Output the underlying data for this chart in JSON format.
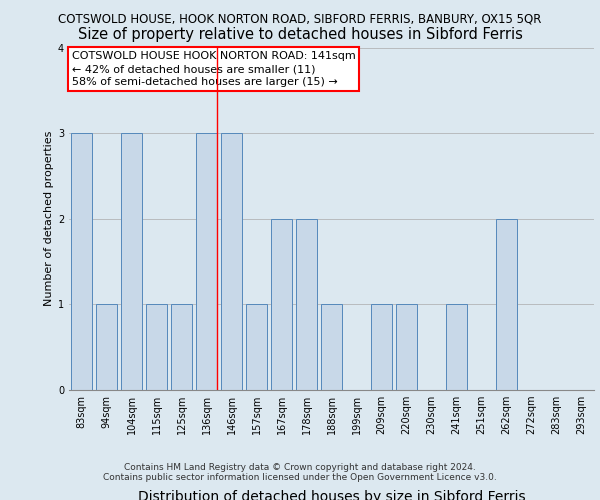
{
  "title_line1": "COTSWOLD HOUSE, HOOK NORTON ROAD, SIBFORD FERRIS, BANBURY, OX15 5QR",
  "title_line2": "Size of property relative to detached houses in Sibford Ferris",
  "xlabel": "Distribution of detached houses by size in Sibford Ferris",
  "ylabel": "Number of detached properties",
  "footer1": "Contains HM Land Registry data © Crown copyright and database right 2024.",
  "footer2": "Contains public sector information licensed under the Open Government Licence v3.0.",
  "categories": [
    "83sqm",
    "94sqm",
    "104sqm",
    "115sqm",
    "125sqm",
    "136sqm",
    "146sqm",
    "157sqm",
    "167sqm",
    "178sqm",
    "188sqm",
    "199sqm",
    "209sqm",
    "220sqm",
    "230sqm",
    "241sqm",
    "251sqm",
    "262sqm",
    "272sqm",
    "283sqm",
    "293sqm"
  ],
  "values": [
    3,
    1,
    3,
    1,
    1,
    3,
    3,
    1,
    2,
    2,
    1,
    0,
    1,
    1,
    0,
    1,
    0,
    2,
    0,
    0,
    0
  ],
  "bar_color": "#c8d8e8",
  "bar_edge_color": "#5588bb",
  "red_line_index": 5,
  "annotation_lines": [
    "COTSWOLD HOUSE HOOK NORTON ROAD: 141sqm",
    "← 42% of detached houses are smaller (11)",
    "58% of semi-detached houses are larger (15) →"
  ],
  "ylim": [
    0,
    4
  ],
  "yticks": [
    0,
    1,
    2,
    3,
    4
  ],
  "bg_color": "#dce8f0",
  "plot_bg_color": "#dce8f0",
  "annotation_box_color": "white",
  "annotation_box_edge_color": "red",
  "grid_color": "#aaaaaa",
  "title1_fontsize": 8.5,
  "title2_fontsize": 10.5,
  "ylabel_fontsize": 8,
  "xlabel_fontsize": 10,
  "tick_fontsize": 7,
  "annot_fontsize": 8,
  "footer_fontsize": 6.5
}
